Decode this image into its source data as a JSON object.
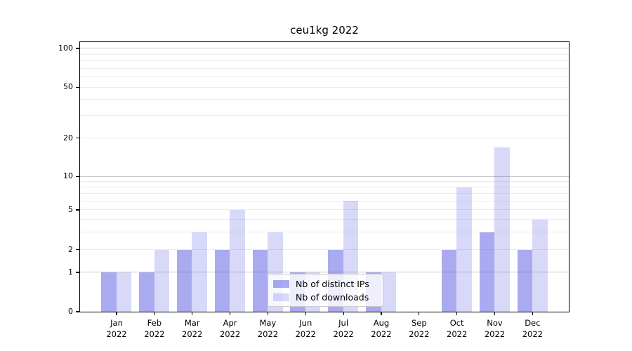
{
  "chart_data": {
    "type": "bar",
    "title": "ceu1kg 2022",
    "categories": [
      {
        "month": "Jan",
        "year": "2022"
      },
      {
        "month": "Feb",
        "year": "2022"
      },
      {
        "month": "Mar",
        "year": "2022"
      },
      {
        "month": "Apr",
        "year": "2022"
      },
      {
        "month": "May",
        "year": "2022"
      },
      {
        "month": "Jun",
        "year": "2022"
      },
      {
        "month": "Jul",
        "year": "2022"
      },
      {
        "month": "Aug",
        "year": "2022"
      },
      {
        "month": "Sep",
        "year": "2022"
      },
      {
        "month": "Oct",
        "year": "2022"
      },
      {
        "month": "Nov",
        "year": "2022"
      },
      {
        "month": "Dec",
        "year": "2022"
      }
    ],
    "series": [
      {
        "name": "Nb of distinct IPs",
        "values": [
          1,
          1,
          2,
          2,
          2,
          1,
          2,
          1,
          0,
          2,
          3,
          2
        ],
        "color": "rgba(100,100,228,0.55)"
      },
      {
        "name": "Nb of downloads",
        "values": [
          1,
          2,
          3,
          5,
          3,
          1,
          6,
          1,
          0,
          8,
          17,
          4
        ],
        "color": "rgba(100,100,228,0.25)"
      }
    ],
    "yscale": "log",
    "y_tick_labels": [
      "0",
      "1",
      "2",
      "5",
      "10",
      "20",
      "50",
      "100"
    ],
    "y_tick_values": [
      0,
      1,
      2,
      5,
      10,
      20,
      50,
      100
    ],
    "ylim": [
      0,
      115
    ],
    "xlabel": "",
    "ylabel": "",
    "grid": true,
    "legend_position": "lower center"
  },
  "colors": {
    "background": "#ffffff",
    "bar_distinct_ips_rendered": "#aaaaf0",
    "bar_downloads_rendered": "#d8d8f8",
    "grid_major": "#c8c8c8",
    "grid_minor": "#ebebeb",
    "axis": "#000000",
    "legend_border": "#cccccc",
    "legend_background": "rgba(255,255,255,0.8)",
    "text": "#000000"
  }
}
